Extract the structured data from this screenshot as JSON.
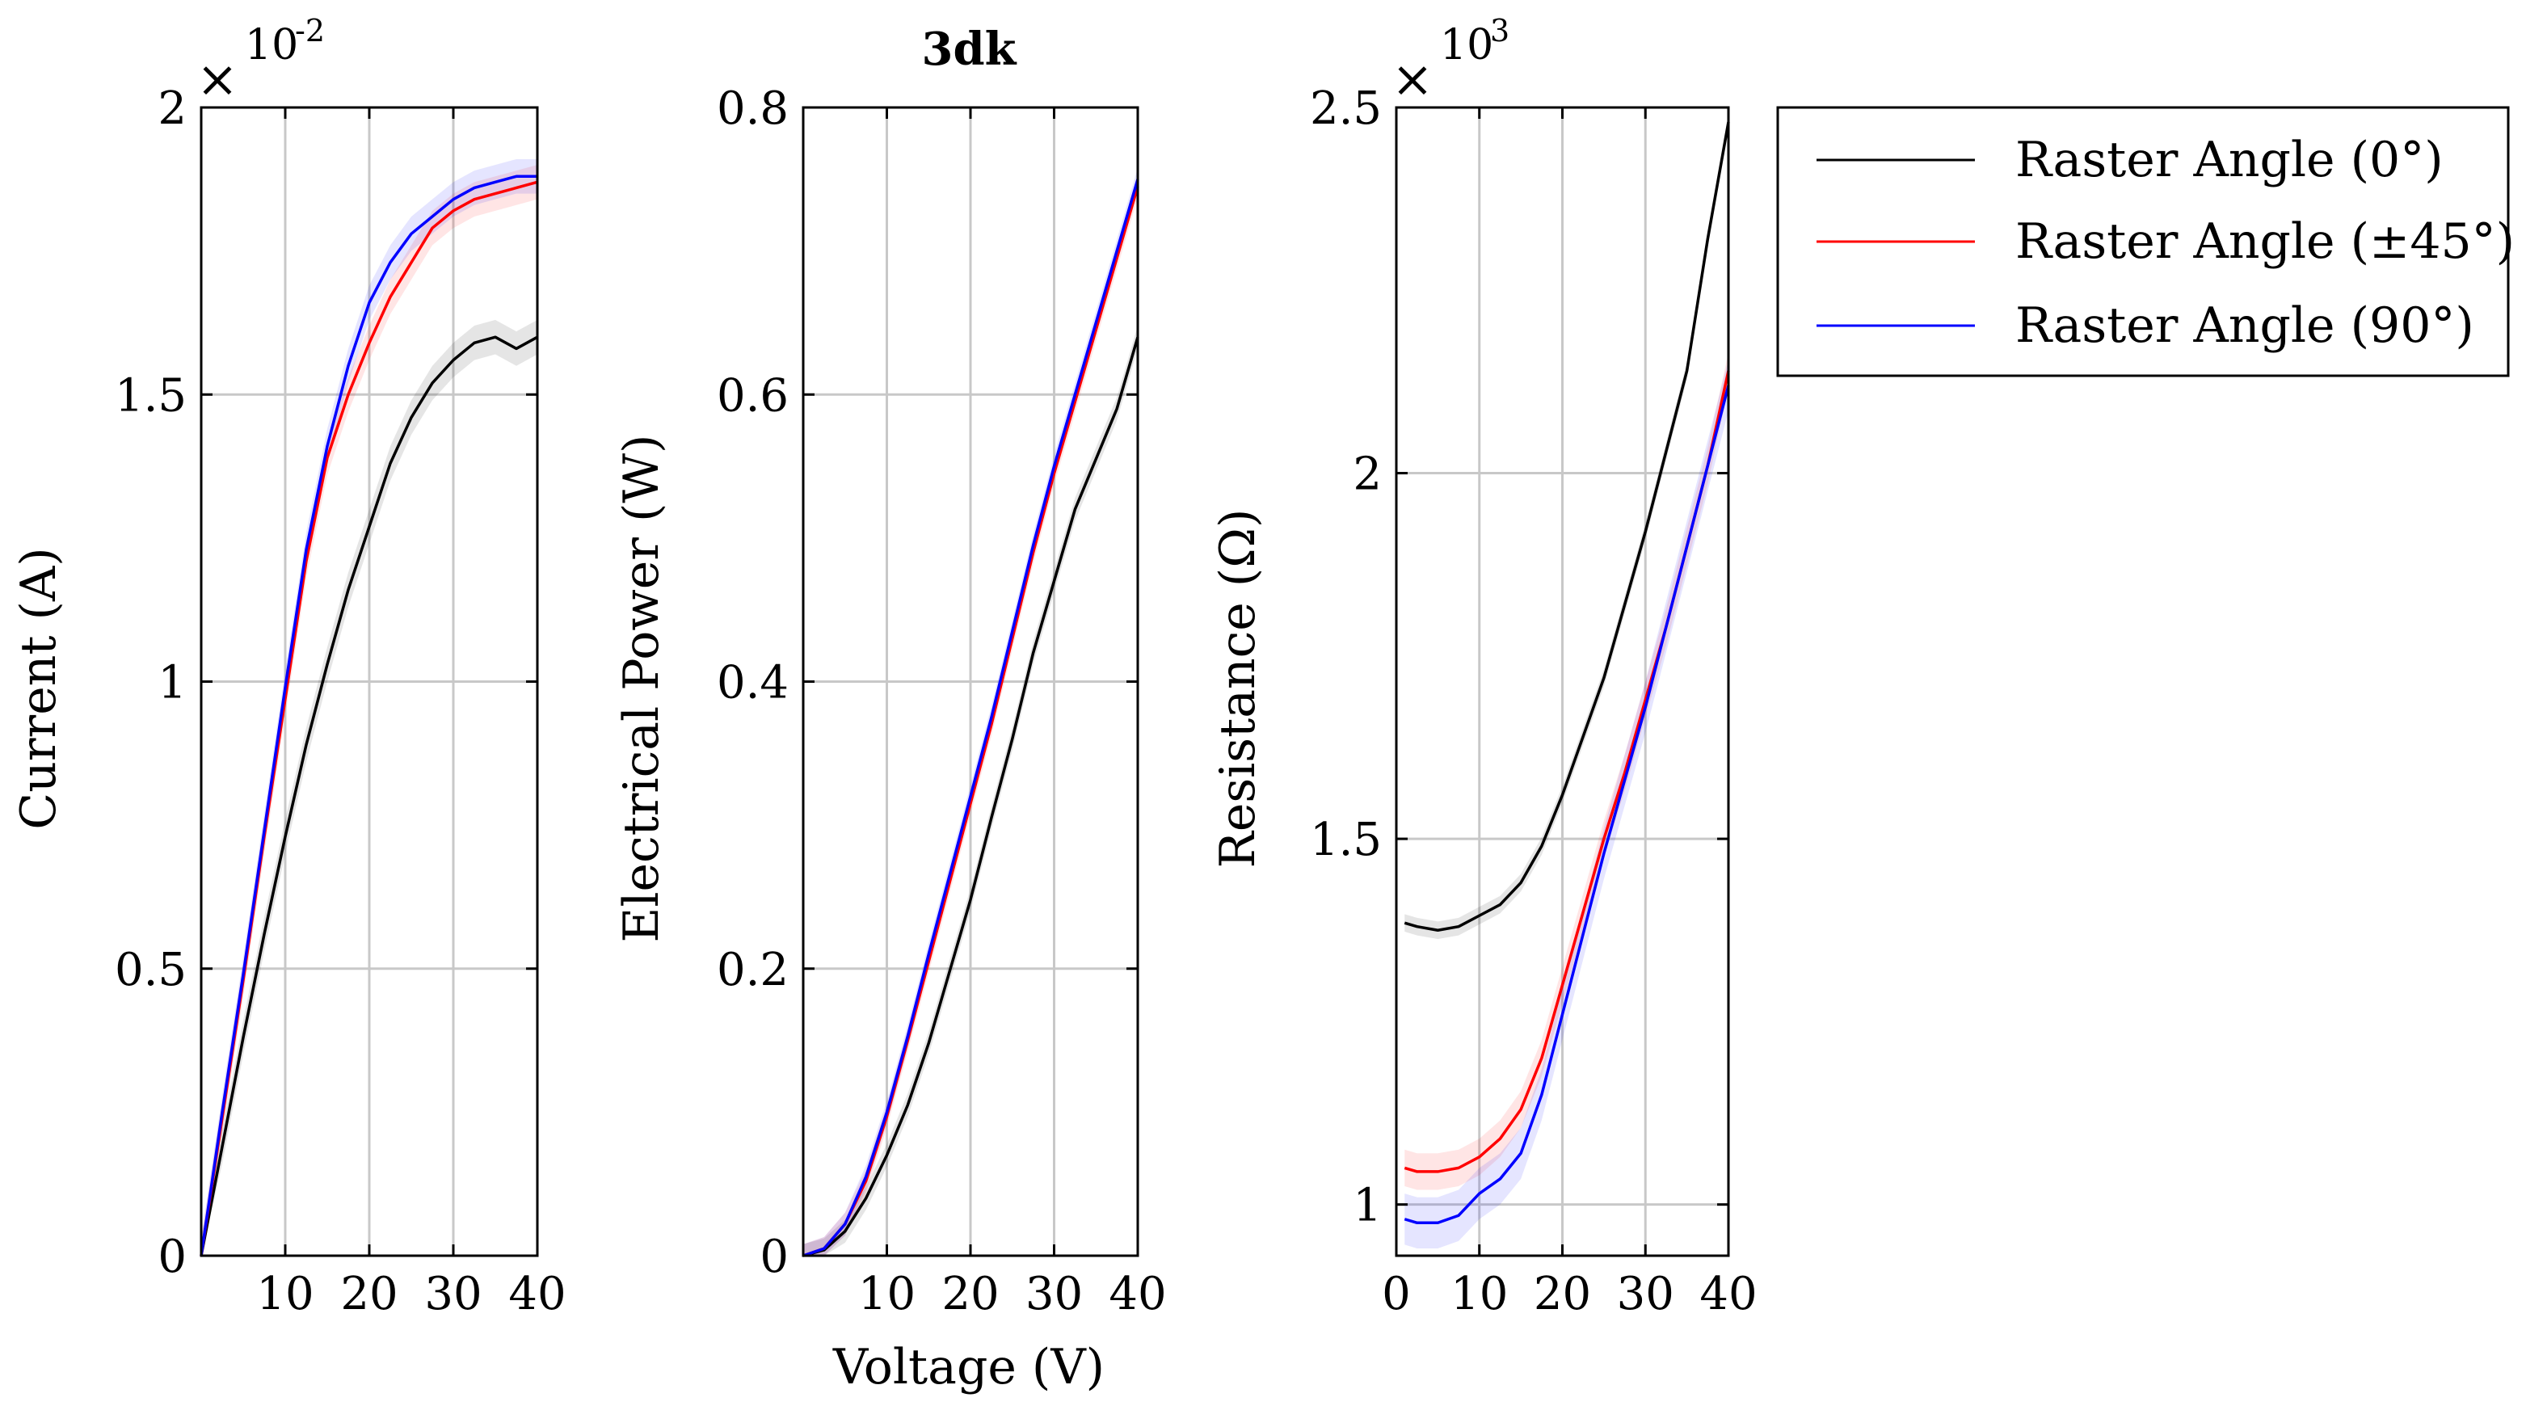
{
  "chart_data": [
    {
      "type": "line",
      "id": "current",
      "title": "",
      "xlabel": "",
      "ylabel": "Current (A)",
      "xlim": [
        0,
        40
      ],
      "ylim": [
        0,
        2
      ],
      "xticks": [
        10,
        20,
        30,
        40
      ],
      "xtick_labels": [
        "10",
        "20",
        "30",
        "40"
      ],
      "yticks": [
        0,
        0.5,
        1,
        1.5,
        2
      ],
      "ytick_labels": [
        "0",
        "0.5",
        "1",
        "1.5",
        "2"
      ],
      "exponent": {
        "multiplier": "×",
        "base": "10",
        "power": "-2"
      },
      "x": [
        0,
        2.5,
        5,
        7.5,
        10,
        12.5,
        15,
        17.5,
        20,
        22.5,
        25,
        27.5,
        30,
        32.5,
        35,
        37.5,
        40
      ],
      "series": [
        {
          "name": "Raster Angle (0°)",
          "color": "#000000",
          "band": 0.03,
          "values": [
            0,
            0.19,
            0.38,
            0.56,
            0.73,
            0.89,
            1.03,
            1.16,
            1.27,
            1.38,
            1.46,
            1.52,
            1.56,
            1.59,
            1.6,
            1.58,
            1.6
          ]
        },
        {
          "name": "Raster Angle (±45°)",
          "color": "#ff0000",
          "band": 0.03,
          "values": [
            0,
            0.24,
            0.48,
            0.73,
            0.97,
            1.21,
            1.39,
            1.5,
            1.59,
            1.67,
            1.73,
            1.79,
            1.82,
            1.84,
            1.85,
            1.86,
            1.87
          ]
        },
        {
          "name": "Raster Angle (90°)",
          "color": "#0000ff",
          "band": 0.03,
          "values": [
            0,
            0.25,
            0.49,
            0.74,
            0.99,
            1.23,
            1.41,
            1.55,
            1.66,
            1.73,
            1.78,
            1.81,
            1.84,
            1.86,
            1.87,
            1.88,
            1.88
          ]
        }
      ]
    },
    {
      "type": "line",
      "id": "power",
      "title": "3dk",
      "xlabel": "Voltage (V)",
      "ylabel": "Electrical Power (W)",
      "xlim": [
        0,
        40
      ],
      "ylim": [
        0,
        0.8
      ],
      "xticks": [
        10,
        20,
        30,
        40
      ],
      "xtick_labels": [
        "10",
        "20",
        "30",
        "40"
      ],
      "yticks": [
        0,
        0.2,
        0.4,
        0.6,
        0.8
      ],
      "ytick_labels": [
        "0",
        "0.2",
        "0.4",
        "0.6",
        "0.8"
      ],
      "x": [
        0,
        2.5,
        5,
        7.5,
        10,
        12.5,
        15,
        17.5,
        20,
        22.5,
        25,
        27.5,
        30,
        32.5,
        35,
        37.5,
        40
      ],
      "series": [
        {
          "name": "Raster Angle (0°)",
          "color": "#000000",
          "band": 0.008,
          "values": [
            0,
            0.004,
            0.017,
            0.04,
            0.07,
            0.105,
            0.148,
            0.198,
            0.248,
            0.305,
            0.36,
            0.42,
            0.47,
            0.52,
            0.555,
            0.59,
            0.64
          ]
        },
        {
          "name": "Raster Angle (±45°)",
          "color": "#ff0000",
          "band": 0.008,
          "values": [
            0,
            0.005,
            0.022,
            0.052,
            0.097,
            0.15,
            0.205,
            0.26,
            0.315,
            0.37,
            0.43,
            0.49,
            0.545,
            0.595,
            0.645,
            0.695,
            0.745
          ]
        },
        {
          "name": "Raster Angle (90°)",
          "color": "#0000ff",
          "band": 0.008,
          "values": [
            0,
            0.005,
            0.022,
            0.055,
            0.1,
            0.153,
            0.21,
            0.265,
            0.32,
            0.375,
            0.435,
            0.495,
            0.55,
            0.6,
            0.65,
            0.7,
            0.75
          ]
        }
      ]
    },
    {
      "type": "line",
      "id": "resistance",
      "title": "",
      "xlabel": "",
      "ylabel": "Resistance (Ω)",
      "xlim": [
        0,
        40
      ],
      "ylim": [
        0.93,
        2.5
      ],
      "xticks": [
        0,
        10,
        20,
        30,
        40
      ],
      "xtick_labels": [
        "0",
        "10",
        "20",
        "30",
        "40"
      ],
      "yticks": [
        1,
        1.5,
        2,
        2.5
      ],
      "ytick_labels": [
        "1",
        "1.5",
        "2",
        "2.5"
      ],
      "exponent": {
        "multiplier": "×",
        "base": "10",
        "power": "3"
      },
      "x": [
        1,
        2.5,
        5,
        7.5,
        10,
        12.5,
        15,
        17.5,
        20,
        22.5,
        25,
        27.5,
        30,
        32.5,
        35,
        37.5,
        40
      ],
      "series": [
        {
          "name": "Raster Angle (0°)",
          "color": "#000000",
          "band": 0.012,
          "values": [
            1.385,
            1.38,
            1.375,
            1.38,
            1.395,
            1.41,
            1.44,
            1.49,
            1.56,
            1.64,
            1.72,
            1.82,
            1.92,
            2.03,
            2.14,
            2.32,
            2.48
          ]
        },
        {
          "name": "Raster Angle (±45°)",
          "color": "#ff0000",
          "band": 0.025,
          "values": [
            1.05,
            1.045,
            1.045,
            1.05,
            1.065,
            1.09,
            1.13,
            1.2,
            1.3,
            1.4,
            1.5,
            1.59,
            1.69,
            1.79,
            1.9,
            2.01,
            2.14
          ]
        },
        {
          "name": "Raster Angle (90°)",
          "color": "#0000ff",
          "band": 0.035,
          "values": [
            0.98,
            0.975,
            0.975,
            0.985,
            1.015,
            1.035,
            1.07,
            1.15,
            1.26,
            1.37,
            1.48,
            1.58,
            1.68,
            1.79,
            1.9,
            2.01,
            2.12
          ]
        }
      ]
    }
  ],
  "legend": {
    "placement": "top-right",
    "entries": [
      {
        "label": "Raster Angle (0°)",
        "color": "#000000"
      },
      {
        "label": "Raster Angle (±45°)",
        "color": "#ff0000"
      },
      {
        "label": "Raster Angle (90°)",
        "color": "#0000ff"
      }
    ]
  }
}
